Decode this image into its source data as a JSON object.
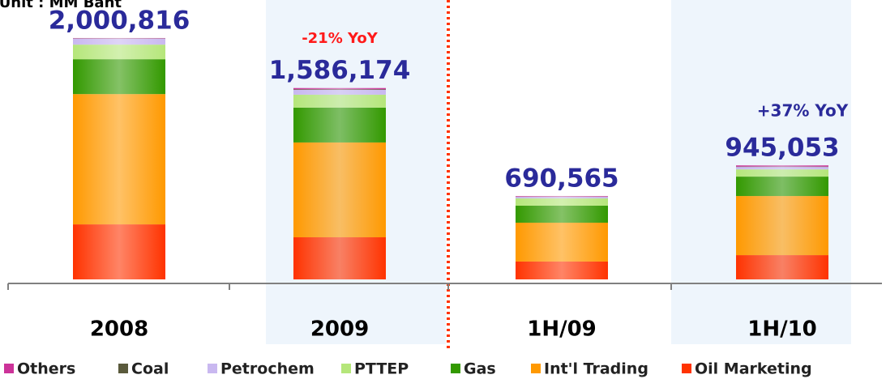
{
  "chart_data": {
    "type": "stacked_bar",
    "unit_label": "Unit : MM Baht",
    "categories": [
      "2008",
      "2009",
      "1H/09",
      "1H/10"
    ],
    "series": [
      {
        "name": "Oil Marketing",
        "color": "#ff3300",
        "values": [
          456000,
          349000,
          148000,
          201000
        ]
      },
      {
        "name": "Int'l Trading",
        "color": "#ff9900",
        "values": [
          1080000,
          786000,
          322000,
          490000
        ]
      },
      {
        "name": "Gas",
        "color": "#339900",
        "values": [
          289000,
          289000,
          141000,
          161000
        ]
      },
      {
        "name": "PTTEP",
        "color": "#b5e67a",
        "values": [
          121000,
          107000,
          60000,
          60000
        ]
      },
      {
        "name": "Petrochem",
        "color": "#c9b8f0",
        "values": [
          50000,
          40000,
          13000,
          20000
        ]
      },
      {
        "name": "Coal",
        "color": "#5a5a3c",
        "values": [
          2000,
          5000,
          2000,
          3000
        ]
      },
      {
        "name": "Others",
        "color": "#cc3399",
        "values": [
          2816,
          10174,
          4565,
          10053
        ]
      }
    ],
    "totals": [
      2000816,
      1586174,
      690565,
      945053
    ],
    "totals_labels": [
      "2,000,816",
      "1,586,174",
      "690,565",
      "945,053"
    ],
    "annotations": [
      {
        "text": "-21% YoY",
        "color": "#ff1a1a"
      },
      {
        "text": "+37% YoY",
        "color": "#2a2a9a"
      }
    ],
    "ylim": [
      0,
      2316000
    ]
  }
}
